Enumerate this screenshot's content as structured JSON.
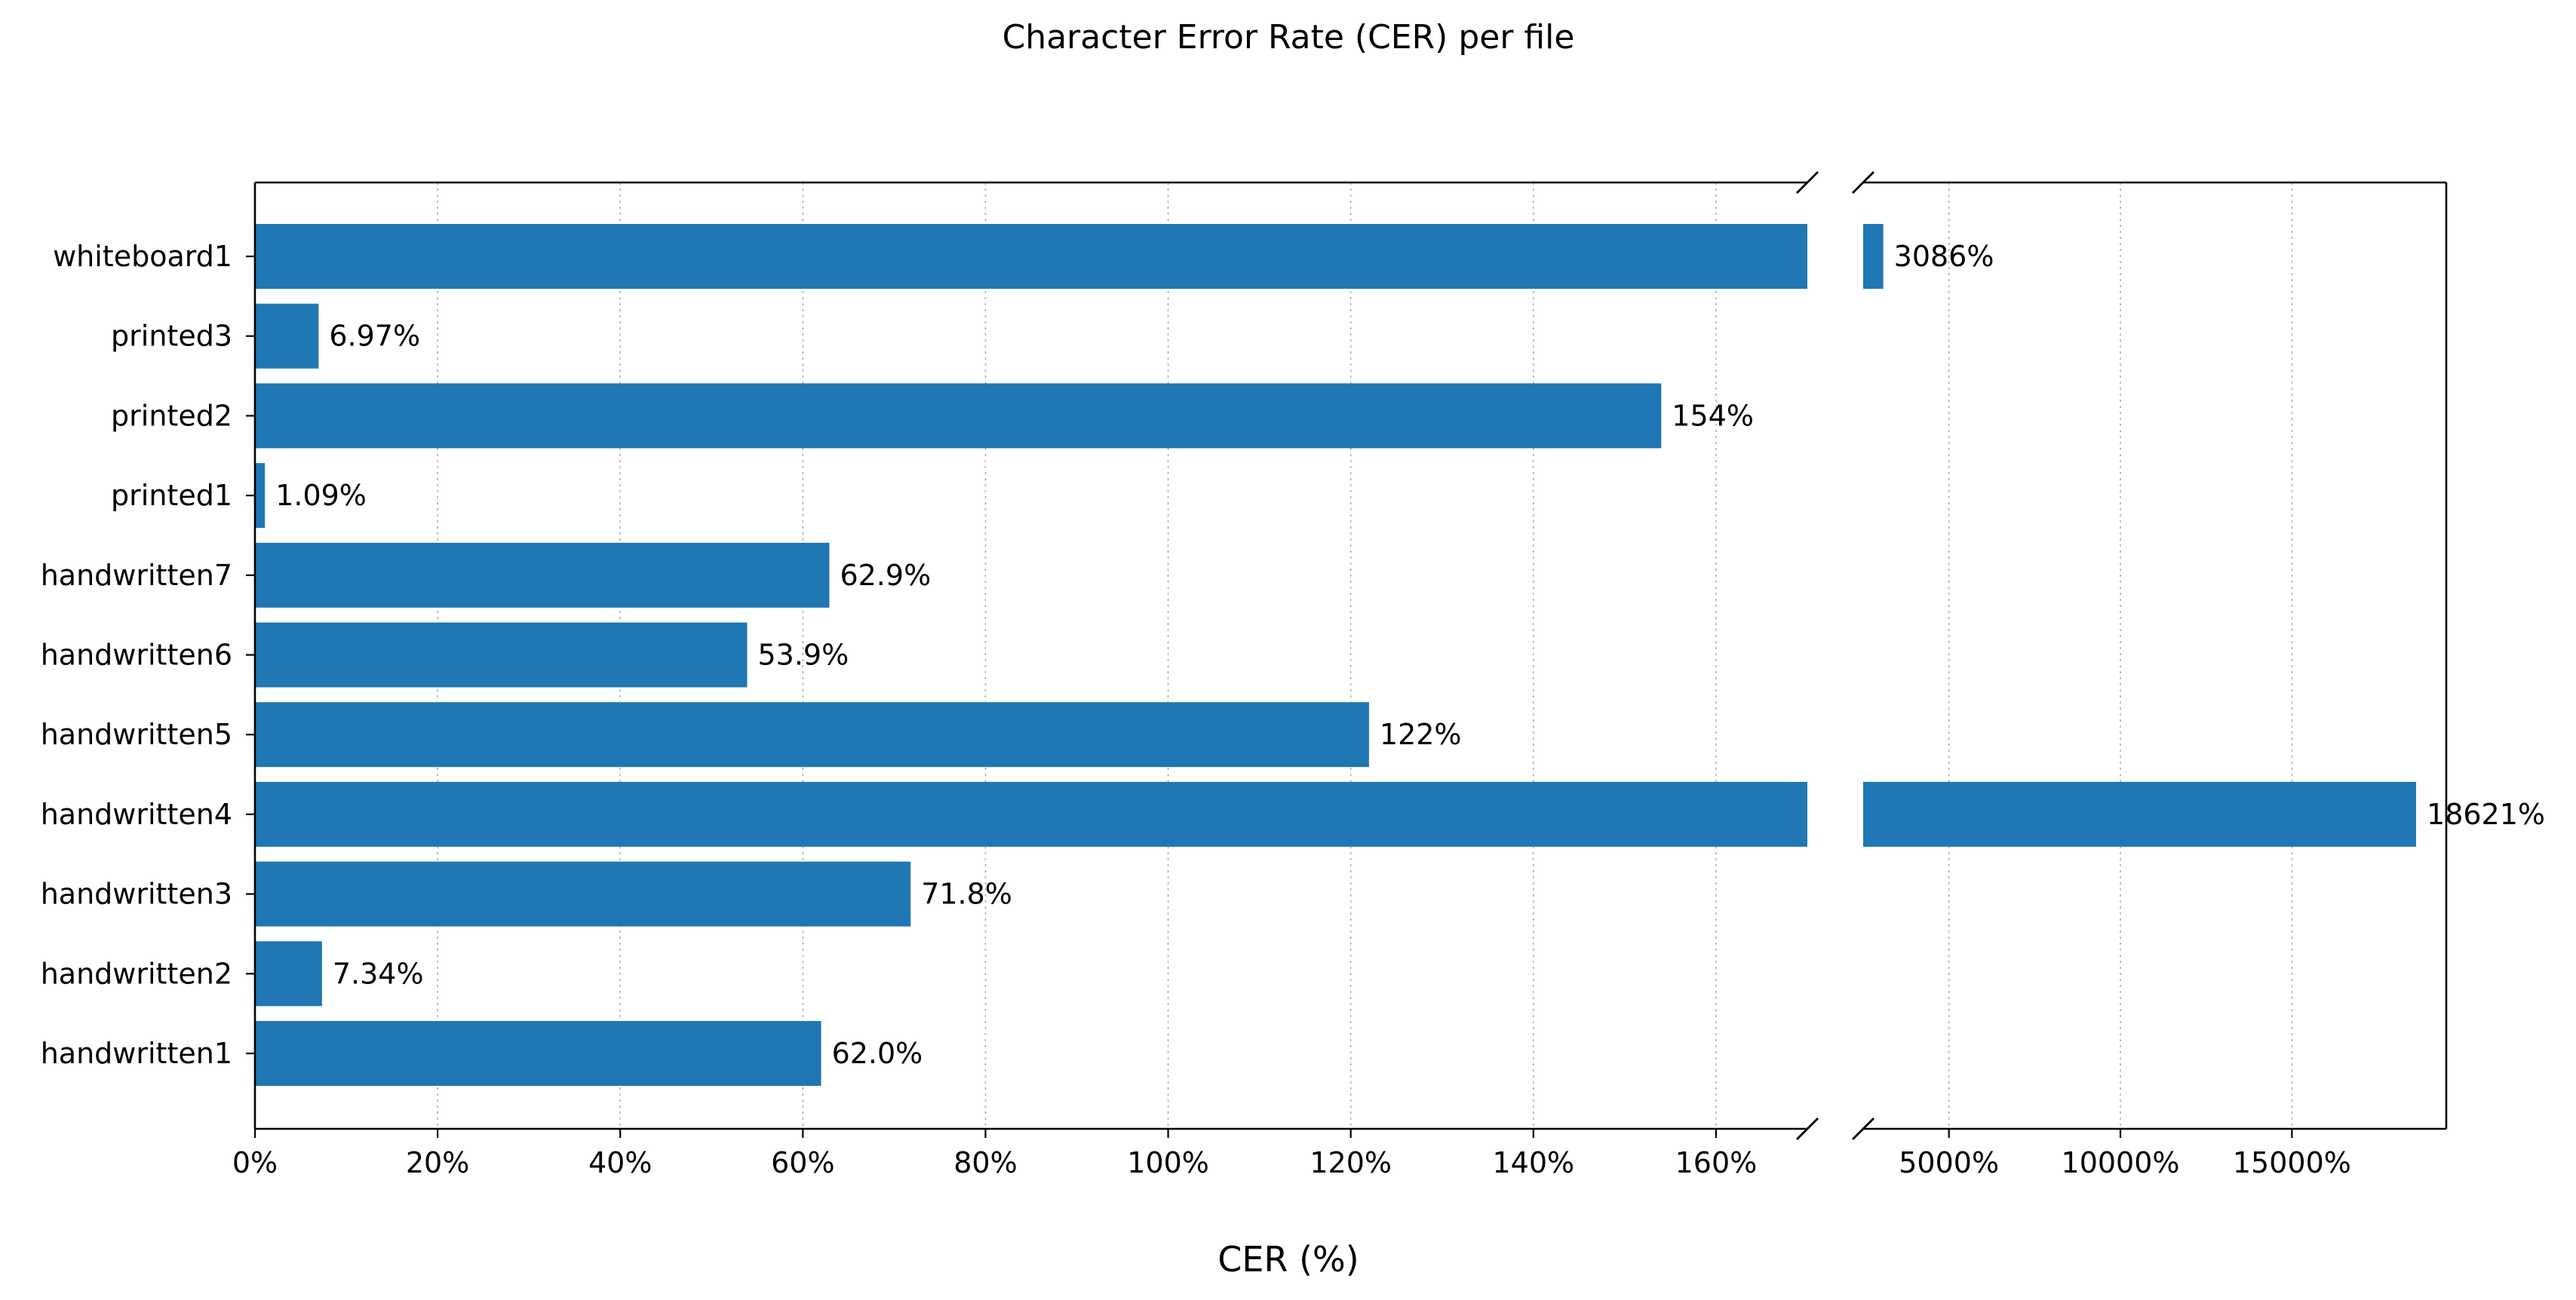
{
  "chart_data": {
    "type": "bar",
    "orientation": "horizontal",
    "title": "Character Error Rate (CER) per file",
    "xlabel": "CER (%)",
    "ylabel": "",
    "categories": [
      "handwritten1",
      "handwritten2",
      "handwritten3",
      "handwritten4",
      "handwritten5",
      "handwritten6",
      "handwritten7",
      "printed1",
      "printed2",
      "printed3",
      "whiteboard1"
    ],
    "values": [
      62.0,
      7.34,
      71.8,
      18621,
      122,
      53.9,
      62.9,
      1.09,
      154,
      6.97,
      3086
    ],
    "data_labels": [
      "62.0%",
      "7.34%",
      "71.8%",
      "18621%",
      "122%",
      "53.9%",
      "62.9%",
      "1.09%",
      "154%",
      "6.97%",
      "3086%"
    ],
    "broken_x_axis": true,
    "xlim_left": [
      0,
      170
    ],
    "xlim_right": [
      2500,
      19500
    ],
    "xticks_left": [
      0,
      20,
      40,
      60,
      80,
      100,
      120,
      140,
      160
    ],
    "xtick_labels_left": [
      "0%",
      "20%",
      "40%",
      "60%",
      "80%",
      "100%",
      "120%",
      "140%",
      "160%"
    ],
    "xticks_right": [
      5000,
      10000,
      15000
    ],
    "xtick_labels_right": [
      "5000%",
      "10000%",
      "15000%"
    ],
    "grid": "x-dotted",
    "bar_color": "#1f77b4"
  }
}
